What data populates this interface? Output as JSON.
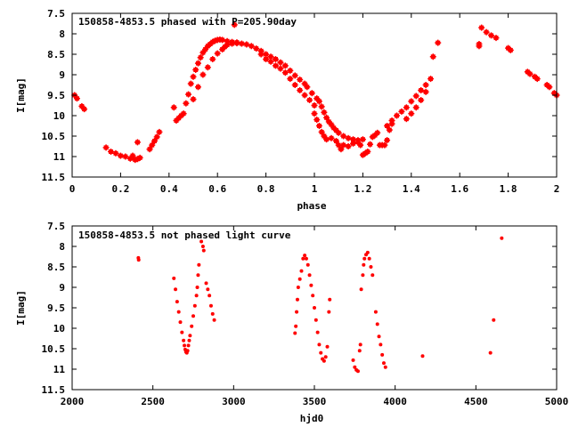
{
  "chart_data": [
    {
      "type": "scatter",
      "title": "150858-4853.5 phased with P=205.90day",
      "xlabel": "phase",
      "ylabel": "I[mag]",
      "xlim": [
        0,
        2
      ],
      "ylim": [
        11.5,
        7.5
      ],
      "y_inverted": true,
      "xticks": [
        "0",
        "0.2",
        "0.4",
        "0.6",
        "0.8",
        "1",
        "1.2",
        "1.4",
        "1.6",
        "1.8",
        "2"
      ],
      "yticks": [
        "7.5",
        "8",
        "8.5",
        "9",
        "9.5",
        "10",
        "10.5",
        "11",
        "11.5"
      ],
      "marker_color": "#ff0000",
      "grid": false,
      "series": [
        {
          "points": [
            [
              0.01,
              9.5
            ],
            [
              0.02,
              9.58
            ],
            [
              0.04,
              9.77
            ],
            [
              0.05,
              9.84
            ],
            [
              0.14,
              10.78
            ],
            [
              0.16,
              10.88
            ],
            [
              0.18,
              10.92
            ],
            [
              0.2,
              10.98
            ],
            [
              0.22,
              11.0
            ],
            [
              0.24,
              11.05
            ],
            [
              0.25,
              10.98
            ],
            [
              0.26,
              11.08
            ],
            [
              0.27,
              11.06
            ],
            [
              0.28,
              11.03
            ],
            [
              0.27,
              10.65
            ],
            [
              0.32,
              10.82
            ],
            [
              0.33,
              10.72
            ],
            [
              0.34,
              10.62
            ],
            [
              0.35,
              10.52
            ],
            [
              0.36,
              10.4
            ],
            [
              0.42,
              9.8
            ],
            [
              0.43,
              10.12
            ],
            [
              0.44,
              10.06
            ],
            [
              0.45,
              10.0
            ],
            [
              0.46,
              9.95
            ],
            [
              0.47,
              9.7
            ],
            [
              0.48,
              9.48
            ],
            [
              0.49,
              9.22
            ],
            [
              0.5,
              9.05
            ],
            [
              0.51,
              8.88
            ],
            [
              0.52,
              8.72
            ],
            [
              0.53,
              8.58
            ],
            [
              0.54,
              8.46
            ],
            [
              0.55,
              8.38
            ],
            [
              0.56,
              8.3
            ],
            [
              0.57,
              8.25
            ],
            [
              0.58,
              8.2
            ],
            [
              0.59,
              8.17
            ],
            [
              0.6,
              8.15
            ],
            [
              0.61,
              8.14
            ],
            [
              0.62,
              8.15
            ],
            [
              0.5,
              9.6
            ],
            [
              0.52,
              9.3
            ],
            [
              0.54,
              9.0
            ],
            [
              0.56,
              8.82
            ],
            [
              0.58,
              8.62
            ],
            [
              0.6,
              8.48
            ],
            [
              0.62,
              8.38
            ],
            [
              0.63,
              8.32
            ],
            [
              0.64,
              8.27
            ],
            [
              0.66,
              8.24
            ],
            [
              0.68,
              8.23
            ],
            [
              0.7,
              8.24
            ],
            [
              0.72,
              8.26
            ],
            [
              0.64,
              8.18
            ],
            [
              0.66,
              8.2
            ],
            [
              0.68,
              8.21
            ],
            [
              0.67,
              7.78
            ],
            [
              0.74,
              8.3
            ],
            [
              0.76,
              8.36
            ],
            [
              0.78,
              8.42
            ],
            [
              0.8,
              8.5
            ],
            [
              0.82,
              8.56
            ],
            [
              0.84,
              8.62
            ],
            [
              0.86,
              8.7
            ],
            [
              0.88,
              8.78
            ],
            [
              0.9,
              8.9
            ],
            [
              0.92,
              9.02
            ],
            [
              0.94,
              9.12
            ],
            [
              0.96,
              9.22
            ],
            [
              0.78,
              8.5
            ],
            [
              0.8,
              8.62
            ],
            [
              0.82,
              8.68
            ],
            [
              0.84,
              8.78
            ],
            [
              0.86,
              8.85
            ],
            [
              0.88,
              8.95
            ],
            [
              0.9,
              9.1
            ],
            [
              0.92,
              9.25
            ],
            [
              0.94,
              9.38
            ],
            [
              0.96,
              9.5
            ],
            [
              0.98,
              9.62
            ],
            [
              1.0,
              9.75
            ],
            [
              0.97,
              9.3
            ],
            [
              0.99,
              9.45
            ],
            [
              1.01,
              9.58
            ],
            [
              1.02,
              9.65
            ],
            [
              1.03,
              9.78
            ],
            [
              1.04,
              9.92
            ],
            [
              1.05,
              10.05
            ],
            [
              1.06,
              10.15
            ],
            [
              1.07,
              10.22
            ],
            [
              1.08,
              10.3
            ],
            [
              1.09,
              10.36
            ],
            [
              1.0,
              9.95
            ],
            [
              1.01,
              10.1
            ],
            [
              1.02,
              10.25
            ],
            [
              1.03,
              10.4
            ],
            [
              1.04,
              10.5
            ],
            [
              1.05,
              10.58
            ],
            [
              1.1,
              10.42
            ],
            [
              1.12,
              10.5
            ],
            [
              1.14,
              10.55
            ],
            [
              1.16,
              10.58
            ],
            [
              1.18,
              10.6
            ],
            [
              1.2,
              10.58
            ],
            [
              1.07,
              10.55
            ],
            [
              1.09,
              10.62
            ],
            [
              1.1,
              10.72
            ],
            [
              1.11,
              10.82
            ],
            [
              1.12,
              10.72
            ],
            [
              1.14,
              10.75
            ],
            [
              1.16,
              10.68
            ],
            [
              1.18,
              10.65
            ],
            [
              1.19,
              10.72
            ],
            [
              1.2,
              10.96
            ],
            [
              1.21,
              10.92
            ],
            [
              1.22,
              10.88
            ],
            [
              1.23,
              10.7
            ],
            [
              1.24,
              10.52
            ],
            [
              1.25,
              10.48
            ],
            [
              1.26,
              10.42
            ],
            [
              1.27,
              10.72
            ],
            [
              1.28,
              10.72
            ],
            [
              1.29,
              10.72
            ],
            [
              1.3,
              10.6
            ],
            [
              1.31,
              10.35
            ],
            [
              1.32,
              10.2
            ],
            [
              1.3,
              10.25
            ],
            [
              1.32,
              10.12
            ],
            [
              1.34,
              10.0
            ],
            [
              1.36,
              9.9
            ],
            [
              1.38,
              9.8
            ],
            [
              1.4,
              9.65
            ],
            [
              1.42,
              9.52
            ],
            [
              1.44,
              9.38
            ],
            [
              1.46,
              9.25
            ],
            [
              1.48,
              9.1
            ],
            [
              1.38,
              10.08
            ],
            [
              1.4,
              9.95
            ],
            [
              1.42,
              9.8
            ],
            [
              1.44,
              9.62
            ],
            [
              1.46,
              9.42
            ],
            [
              1.49,
              8.56
            ],
            [
              1.51,
              8.22
            ],
            [
              1.68,
              8.25
            ],
            [
              1.68,
              8.3
            ],
            [
              1.69,
              7.85
            ],
            [
              1.71,
              7.96
            ],
            [
              1.73,
              8.04
            ],
            [
              1.75,
              8.1
            ],
            [
              1.8,
              8.35
            ],
            [
              1.81,
              8.4
            ],
            [
              1.88,
              8.93
            ],
            [
              1.89,
              8.98
            ],
            [
              1.91,
              9.05
            ],
            [
              1.92,
              9.1
            ],
            [
              1.96,
              9.25
            ],
            [
              1.97,
              9.3
            ],
            [
              1.99,
              9.45
            ],
            [
              2.0,
              9.5
            ]
          ]
        }
      ]
    },
    {
      "type": "scatter",
      "title": "150858-4853.5 not phased light curve",
      "xlabel": "hjd0",
      "ylabel": "I[mag]",
      "xlim": [
        2000,
        5000
      ],
      "ylim": [
        11.5,
        7.5
      ],
      "y_inverted": true,
      "xticks": [
        "2000",
        "2500",
        "3000",
        "3500",
        "4000",
        "4500",
        "5000"
      ],
      "yticks": [
        "7.5",
        "8",
        "8.5",
        "9",
        "9.5",
        "10",
        "10.5",
        "11",
        "11.5"
      ],
      "marker_color": "#ff0000",
      "grid": false,
      "series": [
        {
          "points": [
            [
              2410,
              8.28
            ],
            [
              2412,
              8.33
            ],
            [
              2630,
              8.78
            ],
            [
              2640,
              9.05
            ],
            [
              2650,
              9.35
            ],
            [
              2660,
              9.6
            ],
            [
              2670,
              9.85
            ],
            [
              2680,
              10.1
            ],
            [
              2690,
              10.3
            ],
            [
              2695,
              10.42
            ],
            [
              2700,
              10.52
            ],
            [
              2705,
              10.58
            ],
            [
              2710,
              10.6
            ],
            [
              2715,
              10.55
            ],
            [
              2720,
              10.42
            ],
            [
              2725,
              10.3
            ],
            [
              2730,
              10.18
            ],
            [
              2740,
              9.95
            ],
            [
              2750,
              9.7
            ],
            [
              2760,
              9.45
            ],
            [
              2770,
              9.2
            ],
            [
              2775,
              9.0
            ],
            [
              2780,
              8.7
            ],
            [
              2785,
              8.45
            ],
            [
              2800,
              7.88
            ],
            [
              2810,
              8.0
            ],
            [
              2815,
              8.1
            ],
            [
              2830,
              8.9
            ],
            [
              2840,
              9.05
            ],
            [
              2850,
              9.2
            ],
            [
              2860,
              9.45
            ],
            [
              2870,
              9.65
            ],
            [
              2880,
              9.8
            ],
            [
              3380,
              10.12
            ],
            [
              3385,
              9.95
            ],
            [
              3390,
              9.6
            ],
            [
              3395,
              9.3
            ],
            [
              3400,
              9.0
            ],
            [
              3410,
              8.8
            ],
            [
              3420,
              8.6
            ],
            [
              3430,
              8.3
            ],
            [
              3440,
              8.22
            ],
            [
              3450,
              8.3
            ],
            [
              3460,
              8.45
            ],
            [
              3470,
              8.7
            ],
            [
              3480,
              8.95
            ],
            [
              3490,
              9.2
            ],
            [
              3500,
              9.5
            ],
            [
              3510,
              9.8
            ],
            [
              3520,
              10.1
            ],
            [
              3530,
              10.4
            ],
            [
              3540,
              10.6
            ],
            [
              3550,
              10.75
            ],
            [
              3560,
              10.8
            ],
            [
              3570,
              10.7
            ],
            [
              3580,
              10.45
            ],
            [
              3590,
              9.6
            ],
            [
              3595,
              9.3
            ],
            [
              3740,
              10.78
            ],
            [
              3750,
              10.95
            ],
            [
              3760,
              11.02
            ],
            [
              3770,
              11.05
            ],
            [
              3780,
              10.55
            ],
            [
              3785,
              10.4
            ],
            [
              3790,
              9.05
            ],
            [
              3800,
              8.7
            ],
            [
              3805,
              8.45
            ],
            [
              3810,
              8.3
            ],
            [
              3820,
              8.2
            ],
            [
              3830,
              8.15
            ],
            [
              3840,
              8.3
            ],
            [
              3850,
              8.5
            ],
            [
              3860,
              8.7
            ],
            [
              3880,
              9.6
            ],
            [
              3890,
              9.9
            ],
            [
              3900,
              10.2
            ],
            [
              3910,
              10.4
            ],
            [
              3920,
              10.65
            ],
            [
              3930,
              10.85
            ],
            [
              3940,
              10.95
            ],
            [
              4170,
              10.68
            ],
            [
              4590,
              10.6
            ],
            [
              4610,
              9.8
            ],
            [
              4660,
              7.8
            ]
          ]
        }
      ]
    }
  ]
}
